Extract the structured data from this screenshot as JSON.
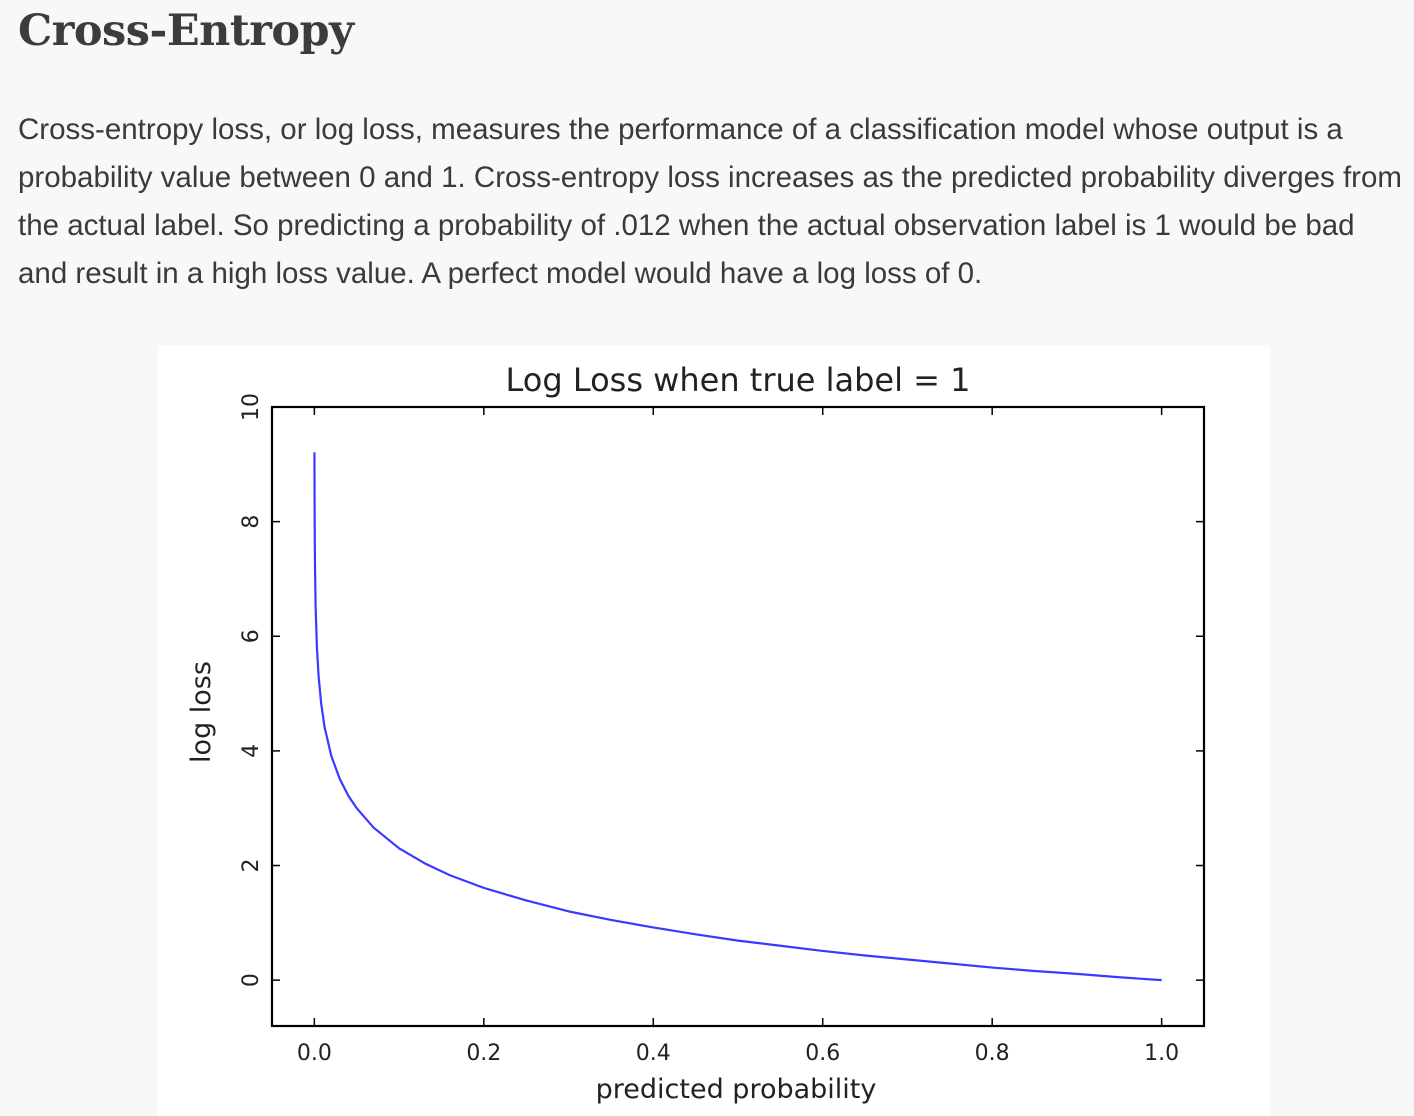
{
  "article": {
    "title": "Cross-Entropy",
    "paragraph": "Cross-entropy loss, or log loss, measures the performance of a classification model whose output is a probability value between 0 and 1. Cross-entropy loss increases as the predicted probability diverges from the actual label. So predicting a probability of .012 when the actual observation label is 1 would be bad and result in a high loss value. A perfect model would have a log loss of 0."
  },
  "chart_data": {
    "type": "line",
    "title": "Log Loss when true label = 1",
    "xlabel": "predicted probability",
    "ylabel": "log loss",
    "xlim": [
      -0.05,
      1.05
    ],
    "ylim": [
      -0.8,
      10
    ],
    "xticks": [
      "0.0",
      "0.2",
      "0.4",
      "0.6",
      "0.8",
      "1.0"
    ],
    "yticks": [
      "0",
      "2",
      "4",
      "6",
      "8",
      "10"
    ],
    "grid": false,
    "series": [
      {
        "color": "#3a3aff",
        "x": [
          0.0001,
          0.0003,
          0.0007,
          0.0015,
          0.003,
          0.005,
          0.008,
          0.012,
          0.02,
          0.03,
          0.04,
          0.05,
          0.07,
          0.1,
          0.13,
          0.16,
          0.2,
          0.25,
          0.3,
          0.35,
          0.4,
          0.45,
          0.5,
          0.55,
          0.6,
          0.65,
          0.7,
          0.75,
          0.8,
          0.85,
          0.9,
          0.95,
          1.0
        ],
        "y": [
          9.21,
          8.11,
          7.26,
          6.5,
          5.81,
          5.3,
          4.83,
          4.42,
          3.91,
          3.51,
          3.22,
          3.0,
          2.66,
          2.3,
          2.04,
          1.83,
          1.61,
          1.39,
          1.2,
          1.05,
          0.92,
          0.8,
          0.69,
          0.6,
          0.51,
          0.43,
          0.36,
          0.29,
          0.22,
          0.16,
          0.11,
          0.05,
          0.0
        ]
      }
    ]
  }
}
